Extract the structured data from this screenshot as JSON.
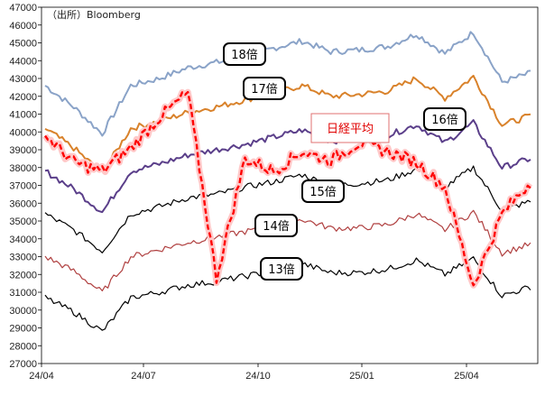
{
  "source": "（出所）Bloomberg",
  "colors": {
    "m18": "#8aa3c8",
    "m17": "#d9822b",
    "m16": "#5b3f8a",
    "m15": "#000000",
    "m14": "#b04040",
    "m13": "#000000",
    "nikkei": "#ff0000",
    "nikkei_glow": "#ffc8c8"
  },
  "chart_data": {
    "type": "line",
    "ylim": [
      27000,
      47000
    ],
    "yticks": [
      "27000",
      "28000",
      "29000",
      "30000",
      "31000",
      "32000",
      "33000",
      "34000",
      "35000",
      "36000",
      "37000",
      "38000",
      "39000",
      "40000",
      "41000",
      "42000",
      "43000",
      "44000",
      "45000",
      "46000",
      "47000"
    ],
    "xticks": [
      "24/04",
      "24/07",
      "24/10",
      "25/01",
      "25/04"
    ],
    "nikkei_label": "日経平均",
    "series": [
      {
        "name": "18倍",
        "key": "m18",
        "values": [
          42600,
          41400,
          39900,
          42600,
          43000,
          43600,
          43900,
          44200,
          44700,
          45100,
          44500,
          44600,
          44800,
          45500,
          44400,
          45600,
          42800,
          43300
        ]
      },
      {
        "name": "17倍",
        "key": "m17",
        "values": [
          40200,
          39100,
          37700,
          40200,
          40600,
          41100,
          41400,
          41800,
          42200,
          42600,
          42000,
          42100,
          42300,
          43000,
          41900,
          43100,
          40400,
          40900
        ]
      },
      {
        "name": "16倍",
        "key": "m16",
        "values": [
          37800,
          36800,
          35500,
          37800,
          38200,
          38700,
          39000,
          39300,
          39700,
          40100,
          39500,
          39600,
          39800,
          40400,
          39400,
          40500,
          38000,
          38500
        ]
      },
      {
        "name": "15倍",
        "key": "m15",
        "values": [
          35400,
          34500,
          33300,
          35400,
          35800,
          36300,
          36500,
          36900,
          37200,
          37600,
          37000,
          37100,
          37300,
          37900,
          36900,
          38000,
          35600,
          36100
        ]
      },
      {
        "name": "14倍",
        "key": "m14",
        "values": [
          33000,
          32200,
          31000,
          33000,
          33400,
          33800,
          34100,
          34400,
          34700,
          35100,
          34600,
          34600,
          34800,
          35400,
          34500,
          35500,
          33200,
          33700
        ]
      },
      {
        "name": "13倍",
        "key": "m13",
        "values": [
          30700,
          29900,
          28800,
          30700,
          31000,
          31400,
          31600,
          31900,
          32200,
          32600,
          32100,
          32100,
          32300,
          32800,
          32000,
          32900,
          30800,
          31300
        ]
      },
      {
        "name": "日経平均",
        "key": "nikkei",
        "values": [
          39800,
          38300,
          37800,
          39100,
          40800,
          42200,
          31800,
          38500,
          37800,
          38900,
          38400,
          39400,
          38900,
          38300,
          36900,
          31400,
          35400,
          37200
        ]
      }
    ]
  }
}
